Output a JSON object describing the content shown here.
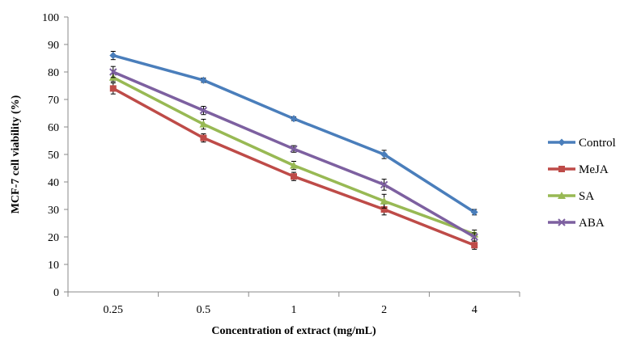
{
  "chart_data": {
    "type": "line",
    "title": "",
    "xlabel": "Concentration of extract (mg/mL)",
    "ylabel": "MCF-7 cell viability (%)",
    "categories": [
      "0.25",
      "0.5",
      "1",
      "2",
      "4"
    ],
    "ylim": [
      0,
      100
    ],
    "yticks": [
      0,
      10,
      20,
      30,
      40,
      50,
      60,
      70,
      80,
      90,
      100
    ],
    "grid": false,
    "legend_position": "right",
    "series": [
      {
        "name": "Control",
        "color": "#4A7EBB",
        "marker": "diamond",
        "values": [
          86,
          77,
          63,
          50,
          29
        ],
        "errors": [
          1.5,
          0.8,
          0.7,
          1.5,
          1.0
        ]
      },
      {
        "name": "MeJA",
        "color": "#BE4B48",
        "marker": "square",
        "values": [
          74,
          56,
          42,
          30,
          17
        ],
        "errors": [
          2.0,
          1.5,
          1.5,
          2.0,
          1.5
        ]
      },
      {
        "name": "SA",
        "color": "#98B954",
        "marker": "triangle",
        "values": [
          78,
          61,
          46,
          33,
          21
        ],
        "errors": [
          1.5,
          1.8,
          1.5,
          2.5,
          1.5
        ]
      },
      {
        "name": "ABA",
        "color": "#7D60A0",
        "marker": "x",
        "values": [
          80,
          66,
          52,
          39,
          20
        ],
        "errors": [
          2.0,
          1.5,
          1.2,
          2.0,
          1.5
        ]
      }
    ]
  }
}
